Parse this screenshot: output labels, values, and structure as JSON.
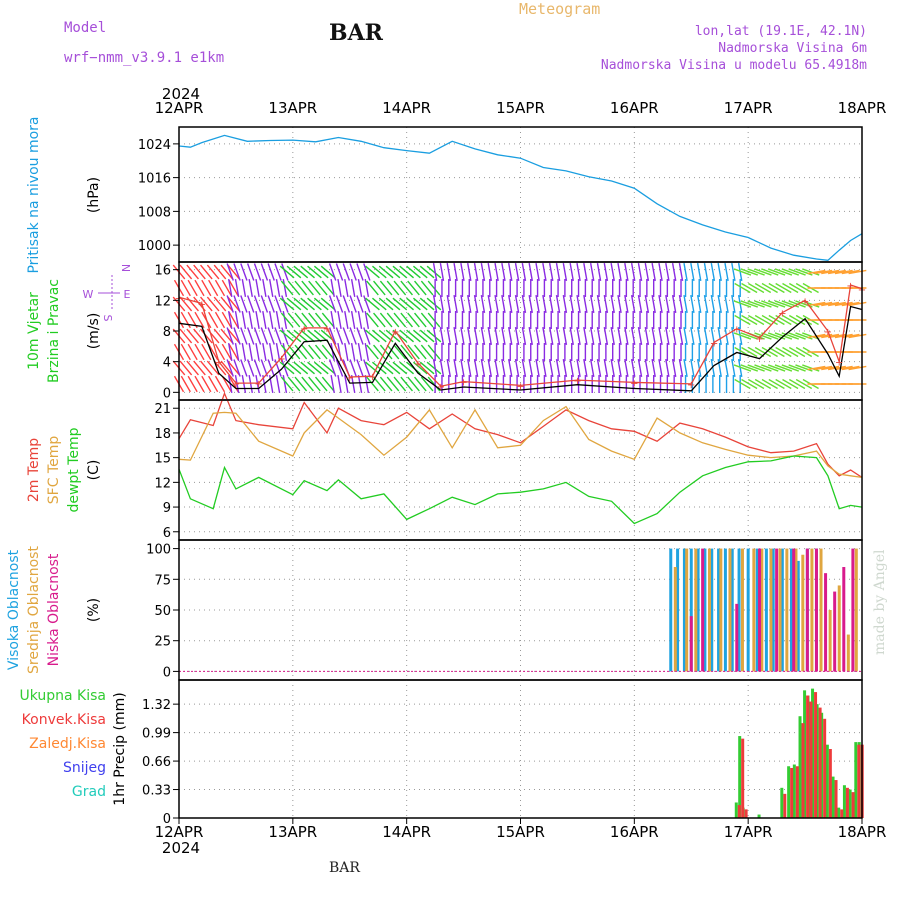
{
  "header": {
    "model_label": "Model",
    "model_name": "wrf−nmm_v3.9.1  e1km",
    "title": "BAR",
    "meteogram": "Meteogram",
    "lonlat": "lon,lat (19.1E, 42.1N)",
    "elevation": "Nadmorska Visina 6m",
    "model_elevation": "Nadmorska Visina u modelu 65.4918m",
    "footer": "BAR",
    "credit": "made by Angel"
  },
  "colors": {
    "pressure": "#1a9ee0",
    "temp2m": "#e8443a",
    "sfc": "#e0a640",
    "dewpt": "#22cc22",
    "high": "#1fa3e0",
    "mid": "#e0a640",
    "low": "#d81b8c",
    "total": "#33cc33",
    "conv": "#ee3b3b",
    "frozen": "#ff8833",
    "snow": "#4040ee",
    "grad": "#22ccbb",
    "windmean": "#000000",
    "gust": "#e8443a",
    "violet": "#a64fd9"
  },
  "chart_data": {
    "type": "line",
    "year_top": "2024",
    "year_bottom": "2024",
    "dates": [
      "12APR",
      "13APR",
      "14APR",
      "15APR",
      "16APR",
      "17APR",
      "18APR"
    ],
    "panels": [
      {
        "id": "pressure",
        "labels": [
          "Pritisak na nivou mora"
        ],
        "unit": "(hPa)",
        "ylim": [
          996,
          1028
        ],
        "yticks": [
          1000,
          1008,
          1016,
          1024
        ],
        "series": [
          {
            "key": "pressure",
            "x": [
              0,
              0.1,
              0.2,
              0.4,
              0.6,
              0.8,
              1.0,
              1.2,
              1.4,
              1.6,
              1.8,
              2.0,
              2.2,
              2.4,
              2.6,
              2.8,
              3.0,
              3.2,
              3.4,
              3.6,
              3.8,
              4.0,
              4.2,
              4.4,
              4.6,
              4.8,
              5.0,
              5.2,
              5.4,
              5.6,
              5.7,
              5.8,
              5.9,
              6.0
            ],
            "values": [
              1023.5,
              1023.2,
              1024.3,
              1026.0,
              1024.6,
              1024.8,
              1024.9,
              1024.5,
              1025.5,
              1024.6,
              1023.1,
              1022.4,
              1021.8,
              1024.6,
              1022.8,
              1021.4,
              1020.6,
              1018.4,
              1017.6,
              1016.2,
              1015.2,
              1013.5,
              1009.8,
              1006.8,
              1004.8,
              1003.1,
              1001.8,
              999.3,
              997.6,
              996.7,
              996.4,
              998.8,
              1001.1,
              1002.7
            ]
          }
        ]
      },
      {
        "id": "wind",
        "labels": [
          "10m Vjetar",
          "Brzina i Pravac"
        ],
        "unit": "(m/s)",
        "ylim": [
          -1,
          17
        ],
        "yticks": [
          0,
          4,
          8,
          12,
          16
        ],
        "compass": [
          "N",
          "E",
          "S",
          "W"
        ],
        "series": [
          {
            "key": "windmean",
            "name": "",
            "x": [
              0,
              0.2,
              0.35,
              0.5,
              0.7,
              0.9,
              1.1,
              1.3,
              1.5,
              1.7,
              1.9,
              2.1,
              2.3,
              2.5,
              3.0,
              3.5,
              4.0,
              4.5,
              4.7,
              4.9,
              5.1,
              5.3,
              5.5,
              5.7,
              5.8,
              5.9,
              6.0
            ],
            "values": [
              9,
              8.6,
              2.5,
              0.5,
              0.5,
              3,
              6.6,
              6.8,
              1.2,
              1.3,
              6.4,
              2.5,
              0.3,
              0.7,
              0.3,
              1,
              0.5,
              0.2,
              3.5,
              5.2,
              4.4,
              7.2,
              9.6,
              5,
              2.1,
              11.2,
              10.8
            ]
          },
          {
            "key": "gust",
            "name": "",
            "x": [
              0,
              0.2,
              0.35,
              0.5,
              0.7,
              0.9,
              1.1,
              1.3,
              1.5,
              1.7,
              1.9,
              2.1,
              2.3,
              2.5,
              3.0,
              3.5,
              4.0,
              4.5,
              4.7,
              4.9,
              5.1,
              5.3,
              5.5,
              5.7,
              5.8,
              5.9,
              6.0
            ],
            "values": [
              12.4,
              11.6,
              4.0,
              1.2,
              1.2,
              4.5,
              8.4,
              8.4,
              2.0,
              2.1,
              8.0,
              3.8,
              0.8,
              1.4,
              0.9,
              1.6,
              1.3,
              1.1,
              6.5,
              8.3,
              7.1,
              10.4,
              12.0,
              8.0,
              4.0,
              14.0,
              13.5
            ]
          }
        ],
        "wind_bands": [
          {
            "from": 0.0,
            "to": 0.5,
            "color": "#ff3e3e",
            "dir": 230
          },
          {
            "from": 0.45,
            "to": 0.95,
            "color": "#8a2be2",
            "dir": 250
          },
          {
            "from": 0.95,
            "to": 1.35,
            "color": "#22cc33",
            "dir": 40
          },
          {
            "from": 1.35,
            "to": 1.7,
            "color": "#8a2be2",
            "dir": 250
          },
          {
            "from": 1.7,
            "to": 2.25,
            "color": "#22cc33",
            "dir": 40
          },
          {
            "from": 2.25,
            "to": 4.45,
            "color": "#8a2be2",
            "dir": 260
          },
          {
            "from": 4.45,
            "to": 4.95,
            "color": "#1ea0e8",
            "dir": 80
          },
          {
            "from": 4.95,
            "to": 5.6,
            "color": "#66dd33",
            "dir": 200
          },
          {
            "from": 5.6,
            "to": 6.0,
            "color": "#ffa030",
            "dir": 170
          }
        ]
      },
      {
        "id": "temperature",
        "labels": [
          "2m Temp",
          "SFC Temp",
          "dewpt Temp"
        ],
        "unit": "(C)",
        "ylim": [
          5,
          22
        ],
        "yticks": [
          6,
          9,
          12,
          15,
          18,
          21
        ],
        "series": [
          {
            "key": "temp2m",
            "x": [
              0,
              0.1,
              0.3,
              0.4,
              0.5,
              0.7,
              1.0,
              1.1,
              1.3,
              1.4,
              1.6,
              1.8,
              2.0,
              2.2,
              2.4,
              2.6,
              2.8,
              3.0,
              3.2,
              3.4,
              3.6,
              3.8,
              4.0,
              4.2,
              4.4,
              4.6,
              4.8,
              5.0,
              5.2,
              5.4,
              5.6,
              5.7,
              5.8,
              5.9,
              6.0
            ],
            "values": [
              17.3,
              19.6,
              18.9,
              22.8,
              19.5,
              19.0,
              18.5,
              21.7,
              18.0,
              21.0,
              19.5,
              19.0,
              20.5,
              18.5,
              20.3,
              18.5,
              17.8,
              16.8,
              18.8,
              20.8,
              19.5,
              18.5,
              18.2,
              17.0,
              19.2,
              18.5,
              17.5,
              16.3,
              15.6,
              15.8,
              16.7,
              14.2,
              12.8,
              13.5,
              12.6
            ]
          },
          {
            "key": "sfc",
            "x": [
              0,
              0.1,
              0.3,
              0.4,
              0.5,
              0.7,
              1.0,
              1.1,
              1.3,
              1.4,
              1.6,
              1.8,
              2.0,
              2.2,
              2.4,
              2.6,
              2.8,
              3.0,
              3.2,
              3.4,
              3.6,
              3.8,
              4.0,
              4.2,
              4.4,
              4.6,
              4.8,
              5.0,
              5.2,
              5.4,
              5.6,
              5.7,
              5.8,
              5.9,
              6.0
            ],
            "values": [
              14.8,
              14.7,
              20.4,
              20.5,
              20.4,
              17.0,
              15.2,
              18.0,
              20.8,
              19.8,
              17.8,
              15.3,
              17.5,
              20.8,
              16.2,
              20.8,
              16.2,
              16.5,
              19.5,
              21.2,
              17.2,
              15.8,
              14.8,
              19.8,
              18.0,
              16.8,
              16.0,
              15.3,
              15.0,
              15.2,
              15.8,
              14.0,
              13.0,
              12.8,
              12.6
            ]
          },
          {
            "key": "dewpt",
            "x": [
              0,
              0.1,
              0.3,
              0.4,
              0.5,
              0.7,
              1.0,
              1.1,
              1.3,
              1.4,
              1.6,
              1.8,
              2.0,
              2.2,
              2.4,
              2.6,
              2.8,
              3.0,
              3.2,
              3.4,
              3.6,
              3.8,
              4.0,
              4.2,
              4.4,
              4.6,
              4.8,
              5.0,
              5.2,
              5.4,
              5.6,
              5.7,
              5.8,
              5.9,
              6.0
            ],
            "values": [
              13.6,
              10.0,
              8.8,
              13.8,
              11.2,
              12.6,
              10.5,
              12.2,
              11.0,
              12.3,
              10.0,
              10.6,
              7.5,
              8.8,
              10.2,
              9.3,
              10.6,
              10.8,
              11.2,
              12.0,
              10.3,
              9.7,
              7.0,
              8.2,
              10.8,
              12.8,
              13.8,
              14.5,
              14.6,
              15.2,
              15.0,
              12.8,
              8.8,
              9.2,
              9.0
            ]
          }
        ]
      },
      {
        "id": "cloud",
        "labels": [
          "Visoka Oblacnost",
          "Srednja Oblacnost",
          "Niska Oblacnost"
        ],
        "unit": "(%)",
        "ylim": [
          -7,
          107
        ],
        "yticks": [
          0,
          25,
          50,
          75,
          100
        ],
        "series": [
          {
            "key": "high",
            "x": [
              4.32,
              4.38,
              4.44,
              4.5,
              4.56,
              4.62,
              4.68,
              4.74,
              4.8,
              4.86,
              4.92,
              5.0,
              5.08,
              5.16,
              5.22,
              5.3,
              5.38,
              5.44,
              5.52,
              5.6
            ],
            "values": [
              100,
              100,
              100,
              100,
              100,
              100,
              100,
              100,
              100,
              100,
              100,
              100,
              100,
              100,
              100,
              100,
              100,
              90,
              100,
              100
            ]
          },
          {
            "key": "mid",
            "x": [
              4.36,
              4.46,
              4.54,
              4.66,
              4.76,
              4.84,
              4.95,
              5.05,
              5.12,
              5.2,
              5.28,
              5.34,
              5.42,
              5.48,
              5.56,
              5.64,
              5.72,
              5.8,
              5.88,
              5.95
            ],
            "values": [
              85,
              100,
              100,
              100,
              100,
              100,
              100,
              100,
              100,
              100,
              100,
              100,
              100,
              95,
              100,
              100,
              50,
              70,
              30,
              100
            ]
          },
          {
            "key": "low",
            "x": [
              4.5,
              4.6,
              4.9,
              5.1,
              5.25,
              5.4,
              5.52,
              5.6,
              5.68,
              5.76,
              5.84,
              5.92
            ],
            "values": [
              45,
              100,
              55,
              100,
              100,
              100,
              100,
              100,
              80,
              65,
              85,
              100
            ]
          }
        ]
      },
      {
        "id": "precip",
        "labels": [
          "Ukupna Kisa",
          "Konvek.Kisa",
          "Zaledj.Kisa",
          "Snijeg",
          "Grad"
        ],
        "unit": "1hr Precip (mm)",
        "ylim": [
          0,
          1.6
        ],
        "yticks": [
          0,
          0.33,
          0.66,
          0.99,
          1.32
        ],
        "tick_labels": [
          "0",
          "0.33",
          "0.66",
          "0.99",
          "1.32"
        ],
        "series": [
          {
            "key": "total",
            "x": [
              4.9,
              4.93,
              4.96,
              5.1,
              5.3,
              5.36,
              5.41,
              5.46,
              5.5,
              5.53,
              5.57,
              5.61,
              5.65,
              5.7,
              5.75,
              5.8,
              5.85,
              5.9,
              5.95,
              5.98
            ],
            "values": [
              0.18,
              0.95,
              0.12,
              0.04,
              0.35,
              0.6,
              0.62,
              1.18,
              1.48,
              1.42,
              1.5,
              1.32,
              1.22,
              0.85,
              0.48,
              0.12,
              0.38,
              0.33,
              0.88,
              0.88
            ]
          },
          {
            "key": "conv",
            "x": [
              4.9,
              4.93,
              4.96,
              5.3,
              5.36,
              5.41,
              5.46,
              5.5,
              5.53,
              5.57,
              5.61,
              5.65,
              5.7,
              5.75,
              5.8,
              5.85,
              5.9,
              5.95,
              5.98
            ],
            "values": [
              0.15,
              0.92,
              0.1,
              0.28,
              0.58,
              0.6,
              1.1,
              1.42,
              1.35,
              1.46,
              1.28,
              1.15,
              0.8,
              0.44,
              0.1,
              0.35,
              0.3,
              0.85,
              0.85
            ]
          }
        ]
      }
    ]
  }
}
